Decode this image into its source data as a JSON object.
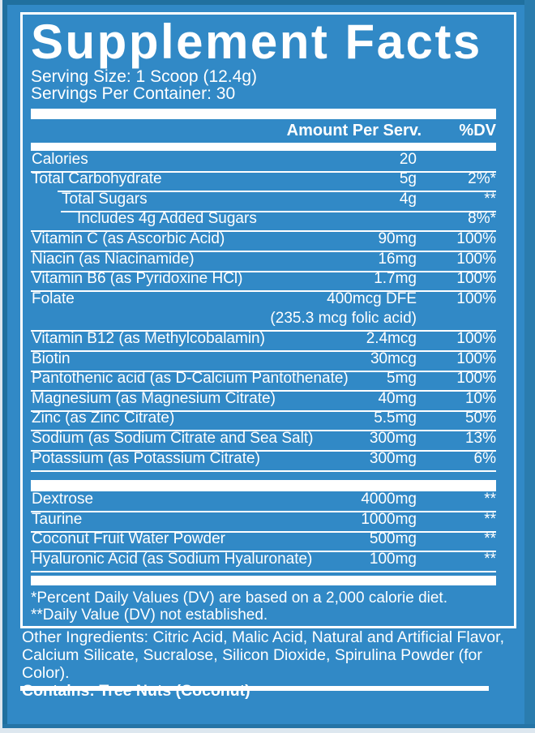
{
  "label": {
    "title": "Supplement Facts",
    "serving_size": "Serving Size: 1 Scoop (12.4g)",
    "servings_per_container": "Servings Per Container: 30",
    "header": {
      "amount": "Amount Per Serv.",
      "dv": "%DV"
    },
    "rows": [
      {
        "name": "Calories",
        "amount": "20",
        "dv": "",
        "indent": 0
      },
      {
        "name": "Total Carbohydrate",
        "amount": "5g",
        "dv": "2%*",
        "indent": 0
      },
      {
        "name": "Total Sugars",
        "amount": "4g",
        "dv": "**",
        "indent": 1
      },
      {
        "name": "Includes 4g Added Sugars",
        "amount": "",
        "dv": "8%*",
        "indent": 2
      },
      {
        "name": "Vitamin C (as Ascorbic Acid)",
        "amount": "90mg",
        "dv": "100%",
        "indent": 0
      },
      {
        "name": "Niacin (as Niacinamide)",
        "amount": "16mg",
        "dv": "100%",
        "indent": 0
      },
      {
        "name": "Vitamin B6 (as Pyridoxine HCl)",
        "amount": "1.7mg",
        "dv": "100%",
        "indent": 0
      },
      {
        "name": "Folate",
        "amount": "400mcg DFE",
        "dv": "100%",
        "indent": 0,
        "note": "(235.3 mcg folic acid)"
      },
      {
        "name": "Vitamin B12 (as Methylcobalamin)",
        "amount": "2.4mcg",
        "dv": "100%",
        "indent": 0
      },
      {
        "name": "Biotin",
        "amount": "30mcg",
        "dv": "100%",
        "indent": 0
      },
      {
        "name": "Pantothenic acid (as D-Calcium Pantothenate)",
        "amount": "5mg",
        "dv": "100%",
        "indent": 0
      },
      {
        "name": "Magnesium (as Magnesium Citrate)",
        "amount": "40mg",
        "dv": "10%",
        "indent": 0
      },
      {
        "name": "Zinc (as Zinc Citrate)",
        "amount": "5.5mg",
        "dv": "50%",
        "indent": 0
      },
      {
        "name": "Sodium (as Sodium Citrate and Sea Salt)",
        "amount": "300mg",
        "dv": "13%",
        "indent": 0
      },
      {
        "name": "Potassium (as Potassium Citrate)",
        "amount": "300mg",
        "dv": "6%",
        "indent": 0
      }
    ],
    "rows2": [
      {
        "name": "Dextrose",
        "amount": "4000mg",
        "dv": "**",
        "indent": 0
      },
      {
        "name": "Taurine",
        "amount": "1000mg",
        "dv": "**",
        "indent": 0
      },
      {
        "name": "Coconut Fruit Water Powder",
        "amount": "500mg",
        "dv": "**",
        "indent": 0
      },
      {
        "name": "Hyaluronic Acid (as Sodium Hyaluronate)",
        "amount": "100mg",
        "dv": "**",
        "indent": 0
      }
    ],
    "footnotes": [
      "*Percent Daily Values (DV) are based on a 2,000 calorie diet.",
      "**Daily Value (DV) not established."
    ],
    "other_ingredients_lines": [
      "Other Ingredients: Citric Acid, Malic Acid, Natural and Artificial Flavor,",
      "Calcium Silicate, Sucralose, Silicon Dioxide, Spirulina Powder (for Color)."
    ],
    "contains": "Contains: Tree Nuts (Coconut)"
  },
  "colors": {
    "background": "#3189c6",
    "text": "#ffffff",
    "panel_border": "#ffffff",
    "edge_dark": "#20709f",
    "edge_light": "#dde7ef"
  }
}
